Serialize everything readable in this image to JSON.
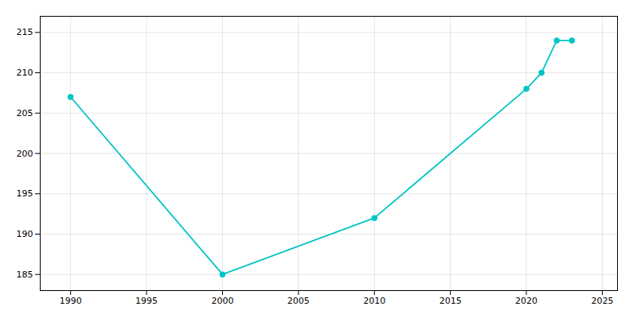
{
  "chart_data": {
    "type": "line",
    "x": [
      1990,
      2000,
      2010,
      2020,
      2021,
      2022,
      2023
    ],
    "values": [
      207,
      185,
      192,
      208,
      210,
      214,
      214
    ],
    "color": "#00C5C5",
    "marker": "circle",
    "xlim": [
      1988,
      2026
    ],
    "ylim": [
      183,
      217
    ],
    "xticks": [
      1990,
      1995,
      2000,
      2005,
      2010,
      2015,
      2020,
      2025
    ],
    "yticks": [
      185,
      190,
      195,
      200,
      205,
      210,
      215
    ],
    "grid": true
  }
}
